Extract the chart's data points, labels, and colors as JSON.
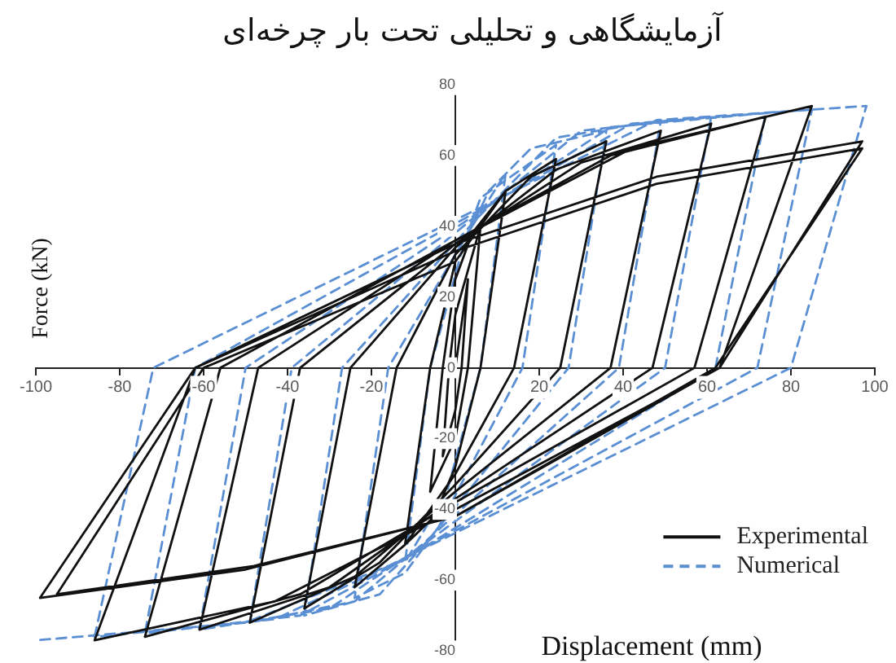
{
  "chart_data": {
    "type": "line",
    "title": "آزمایشگاهی و تحلیلی تحت بار چرخه‌ای",
    "xlabel": "Displacement (mm)",
    "ylabel": "Force (kN)",
    "xlim": [
      -100,
      100
    ],
    "ylim": [
      -80,
      80
    ],
    "xticks": [
      -100,
      -80,
      -60,
      -40,
      -20,
      20,
      40,
      60,
      80,
      100
    ],
    "yticks": [
      -80,
      -60,
      -40,
      -20,
      0,
      20,
      40,
      60,
      80
    ],
    "legend": "bottom right",
    "marker": "none",
    "series": [
      {
        "name": "Experimental",
        "color": "#111111",
        "line_style": "solid",
        "x": [
          0,
          3,
          1.5,
          0,
          -3,
          -1.5,
          0,
          6,
          3,
          0,
          -6,
          -3,
          0,
          4,
          12,
          6,
          0,
          -5,
          -12,
          -6,
          0,
          12,
          24,
          14,
          0,
          -12,
          -24,
          -14,
          0,
          18,
          36,
          25,
          0,
          -18,
          -36,
          -25,
          0,
          24,
          49,
          37,
          0,
          -24,
          -49,
          -37,
          0,
          30,
          61,
          47,
          0,
          -30,
          -61,
          -47,
          0,
          37,
          74,
          57,
          0,
          -37,
          -74,
          -56,
          0,
          42,
          85,
          63,
          0,
          -43,
          -86,
          -62,
          0,
          48,
          97,
          63,
          0,
          -50,
          -99,
          -62,
          0,
          48,
          97,
          62,
          0,
          -48,
          -95,
          -60,
          0
        ],
        "values": [
          0,
          25,
          0,
          -12,
          -25,
          0,
          15,
          40,
          0,
          -20,
          -35,
          0,
          25,
          38,
          50,
          0,
          -28,
          -42,
          -50,
          0,
          30,
          50,
          59,
          0,
          -30,
          -50,
          -62,
          0,
          32,
          54,
          64,
          0,
          -33,
          -55,
          -68,
          0,
          34,
          56,
          67,
          0,
          -35,
          -59,
          -72,
          0,
          35,
          58,
          69,
          0,
          -37,
          -62,
          -74,
          0,
          36,
          60,
          71,
          0,
          -38,
          -64,
          -76,
          0,
          36,
          62,
          74,
          0,
          -40,
          -66,
          -77,
          0,
          35,
          54,
          64,
          0,
          -42,
          -57,
          -65,
          0,
          33,
          52,
          62,
          0,
          -42,
          -56,
          -64,
          0,
          30
        ]
      },
      {
        "name": "Numerical",
        "color": "#5b8fd4",
        "line_style": "dashed",
        "x": [
          4,
          12,
          6,
          -2,
          -12,
          -6,
          2,
          6,
          24,
          16,
          -4,
          -12,
          -24,
          -16,
          4,
          8,
          18,
          36,
          27,
          -6,
          -18,
          -36,
          -27,
          5,
          24,
          49,
          39,
          -8,
          -24,
          -49,
          -39,
          6,
          30,
          61,
          50,
          -10,
          -30,
          -61,
          -50,
          7,
          37,
          74,
          62,
          -12,
          -37,
          -74,
          -62,
          8,
          42,
          85,
          72,
          -14,
          -43,
          -86,
          -72,
          9,
          48,
          98,
          80,
          -16,
          -50,
          -100
        ],
        "values": [
          40,
          55,
          0,
          -35,
          -55,
          0,
          35,
          48,
          63,
          0,
          -45,
          -58,
          -65,
          0,
          40,
          50,
          62,
          67,
          0,
          -48,
          -64,
          -70,
          0,
          42,
          65,
          70,
          0,
          -50,
          -66,
          -72,
          0,
          44,
          67,
          71,
          0,
          -52,
          -68,
          -74,
          0,
          45,
          68,
          72,
          0,
          -54,
          -70,
          -75,
          0,
          46,
          69,
          73,
          0,
          -55,
          -71,
          -76,
          0,
          47,
          70,
          74,
          0,
          -56,
          -72,
          -77
        ]
      }
    ]
  }
}
